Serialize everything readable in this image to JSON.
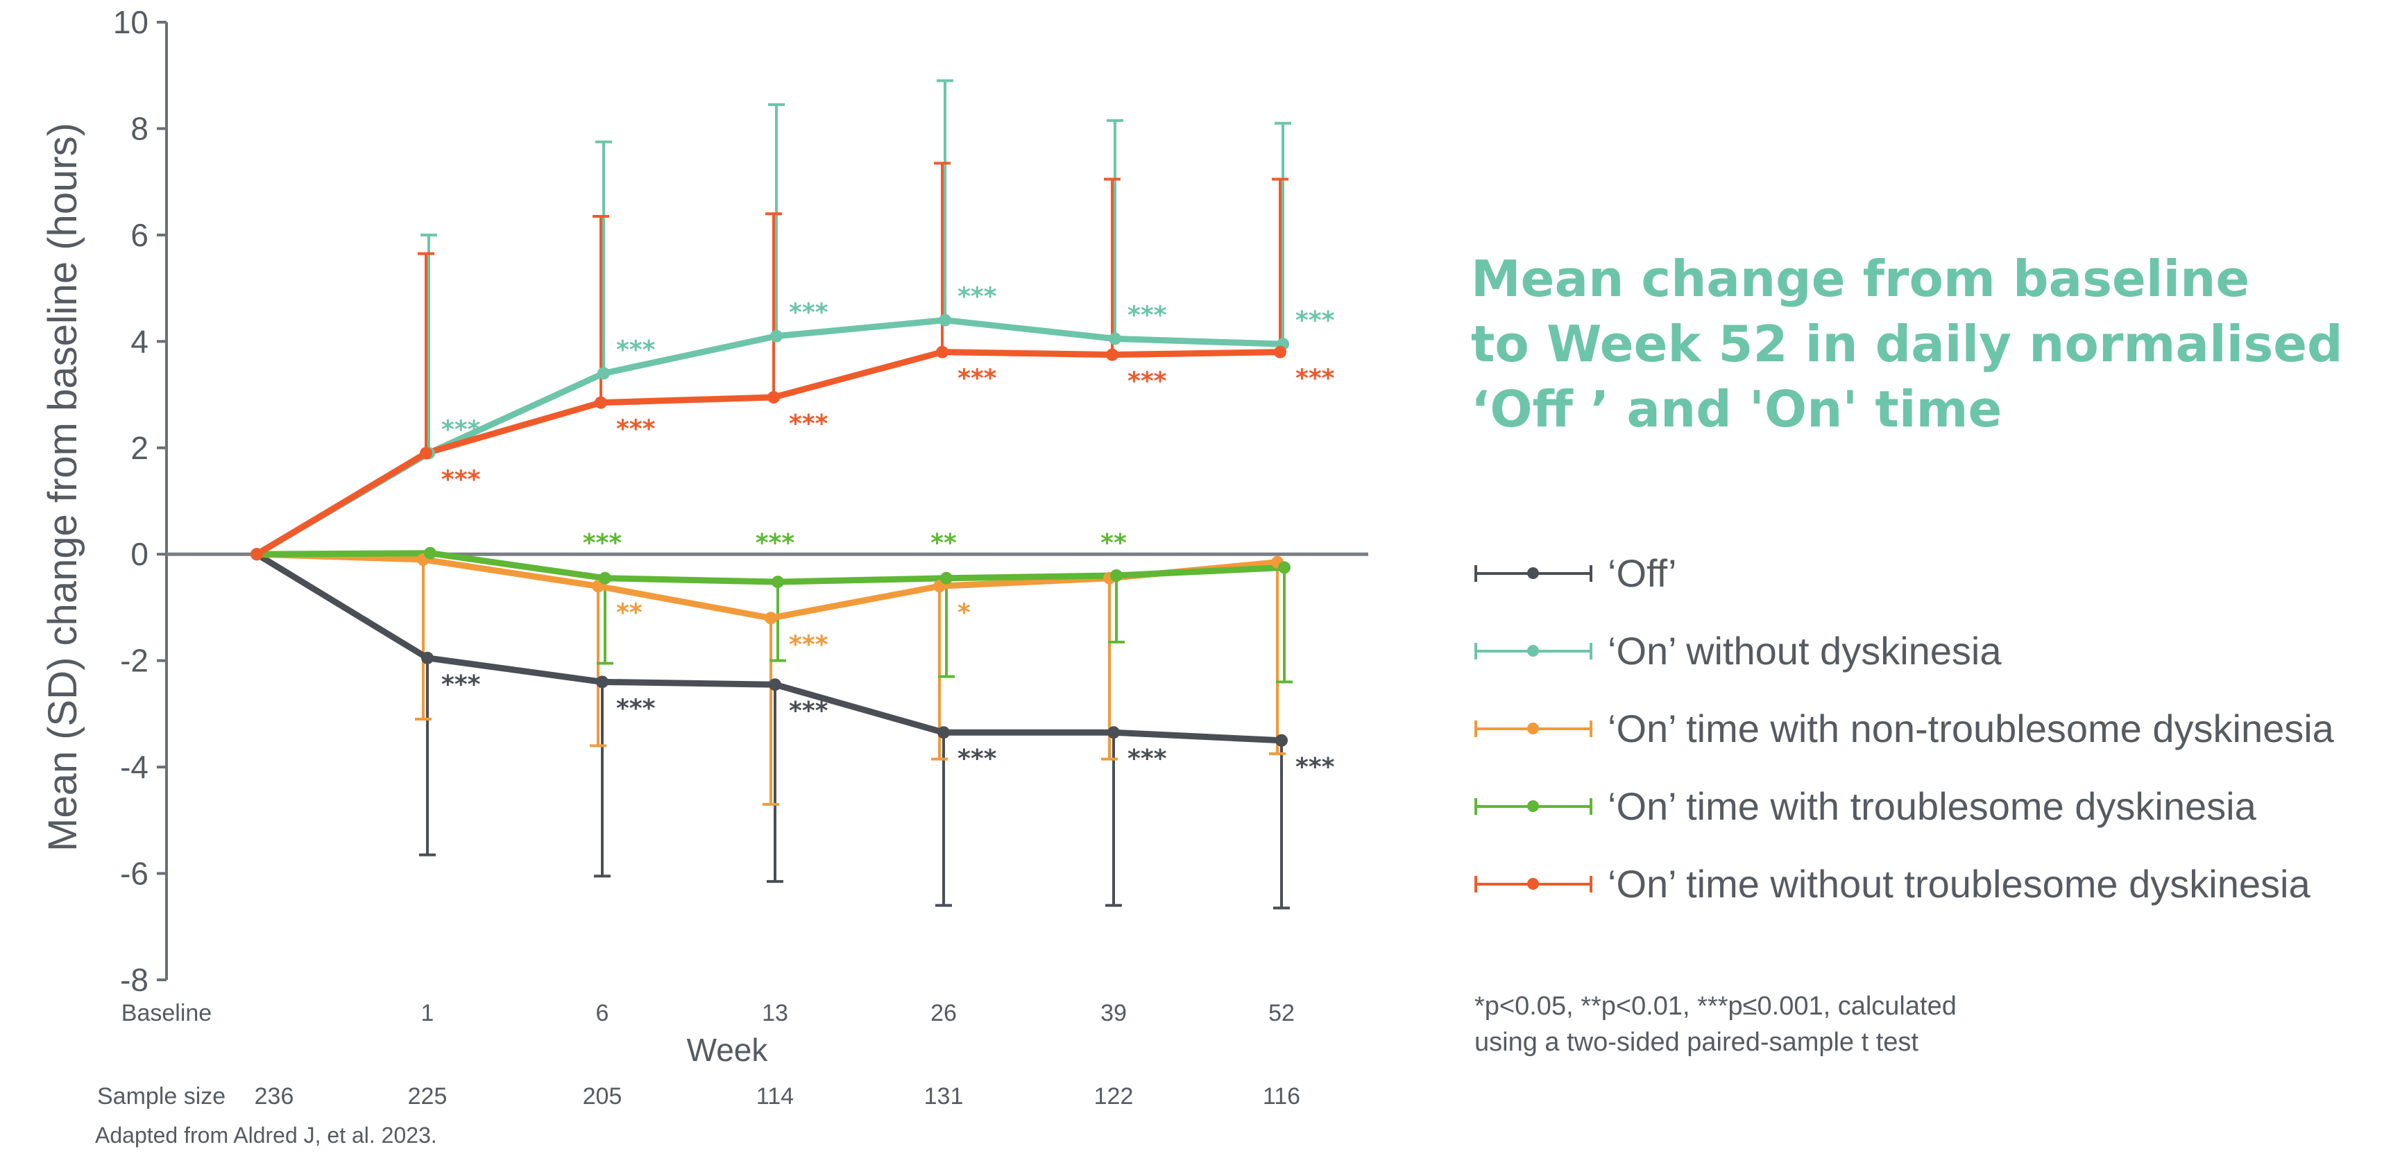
{
  "chart_data": {
    "type": "line",
    "title": [
      "Mean change from baseline",
      "to Week 52 in daily normalised",
      "‘Off ’ and 'On' time"
    ],
    "ylabel": "Mean (SD) change from baseline (hours)",
    "xlabel": "Week",
    "ylim": [
      -8,
      10
    ],
    "yticks": [
      10,
      8,
      6,
      4,
      2,
      0,
      -2,
      -4,
      -6,
      -8
    ],
    "ytick_labels": [
      "10",
      "8",
      "6",
      "4",
      "2",
      "0",
      "-2",
      "-4",
      "-6",
      "-8"
    ],
    "x": [
      0,
      1,
      6,
      13,
      26,
      39,
      52
    ],
    "x_labels": [
      "Baseline",
      "1",
      "6",
      "13",
      "26",
      "39",
      "52"
    ],
    "series": [
      {
        "name": "‘Off’",
        "color": "#4a4f55",
        "values": [
          0,
          -1.95,
          -2.4,
          -2.45,
          -3.35,
          -3.35,
          -3.5
        ],
        "err_lower": [
          null,
          -5.65,
          -6.05,
          -6.15,
          -6.6,
          -6.6,
          -6.65
        ],
        "err_upper": [
          null,
          null,
          null,
          null,
          null,
          null,
          null
        ],
        "sig": [
          null,
          "***",
          "***",
          "***",
          "***",
          "***",
          "***"
        ],
        "sig_pos": "below"
      },
      {
        "name": "‘On’ without dyskinesia",
        "color": "#6cc5a8",
        "values": [
          0,
          1.9,
          3.4,
          4.1,
          4.4,
          4.05,
          3.95
        ],
        "err_lower": [
          null,
          null,
          null,
          null,
          null,
          null,
          null
        ],
        "err_upper": [
          null,
          6.0,
          7.75,
          8.45,
          8.9,
          8.15,
          8.1
        ],
        "sig": [
          null,
          "***",
          "***",
          "***",
          "***",
          "***",
          "***"
        ],
        "sig_pos": "above"
      },
      {
        "name": "‘On’ time with non-troublesome dyskinesia",
        "color": "#f29a3a",
        "values": [
          0,
          -0.1,
          -0.6,
          -1.2,
          -0.6,
          -0.45,
          -0.15
        ],
        "err_lower": [
          null,
          -3.1,
          -3.6,
          -4.7,
          -3.85,
          -3.85,
          -3.75
        ],
        "err_upper": [
          null,
          null,
          null,
          null,
          null,
          null,
          null
        ],
        "sig": [
          null,
          null,
          "**",
          "***",
          "*",
          null,
          null
        ],
        "sig_pos": "below"
      },
      {
        "name": "‘On’ time with troublesome dyskinesia",
        "color": "#5fb736",
        "values": [
          0,
          0.02,
          -0.45,
          -0.52,
          -0.45,
          -0.4,
          -0.25
        ],
        "err_lower": [
          null,
          null,
          -2.05,
          -2.0,
          -2.3,
          -1.65,
          -2.4
        ],
        "err_upper": [
          null,
          null,
          null,
          null,
          null,
          null,
          null
        ],
        "sig": [
          null,
          null,
          "***",
          "***",
          "**",
          "**",
          null
        ],
        "sig_pos": "above-axis"
      },
      {
        "name": "‘On’ time without troublesome dyskinesia",
        "color": "#f05a2b",
        "values": [
          0,
          1.9,
          2.85,
          2.95,
          3.8,
          3.75,
          3.8
        ],
        "err_lower": [
          null,
          null,
          null,
          null,
          null,
          null,
          null
        ],
        "err_upper": [
          null,
          5.65,
          6.35,
          6.4,
          7.35,
          7.05,
          7.05
        ],
        "sig": [
          null,
          "***",
          "***",
          "***",
          "***",
          "***",
          "***"
        ],
        "sig_pos": "below"
      }
    ],
    "sample_size_label": "Sample size",
    "sample_sizes": [
      "236",
      "225",
      "205",
      "114",
      "131",
      "122",
      "116"
    ],
    "source": "Adapted from Aldred J, et al. 2023."
  },
  "footnote": [
    "*p<0.05, **p<0.01, ***p≤0.001, calculated",
    "using a two-sided paired-sample t test"
  ]
}
